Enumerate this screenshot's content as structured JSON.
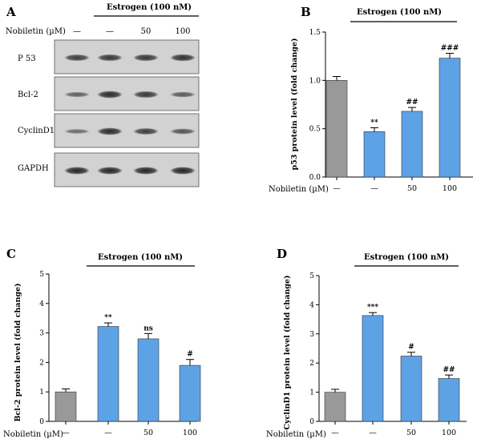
{
  "colors": {
    "control_bar": "#999999",
    "treated_bar": "#5ea2e6",
    "axis": "#000000",
    "blot_bg": "#d2d2d2",
    "band": "#1e1e1e"
  },
  "panel_a": {
    "letter": "A",
    "header": "Estrogen (100 nM)",
    "dose_label": "Nobiletin (µM)",
    "lane_labels": [
      "—",
      "—",
      "50",
      "100"
    ],
    "rows": [
      {
        "label": "P 53",
        "band_intensity": [
          0.75,
          0.8,
          0.8,
          0.85
        ]
      },
      {
        "label": "Bcl-2",
        "band_intensity": [
          0.45,
          0.9,
          0.8,
          0.5
        ]
      },
      {
        "label": "CyclinD1",
        "band_intensity": [
          0.35,
          0.9,
          0.75,
          0.55
        ]
      },
      {
        "label": "GAPDH",
        "band_intensity": [
          0.95,
          0.95,
          0.95,
          0.95
        ]
      }
    ]
  },
  "chart_data": [
    {
      "panel": "B",
      "type": "bar",
      "header": "Estrogen (100 nM)",
      "dose_label": "Nobiletin (µM)",
      "ylabel": "p53 protein level (fold change)",
      "xlabel": "",
      "categories": [
        "—",
        "—",
        "50",
        "100"
      ],
      "values": [
        1.0,
        0.47,
        0.68,
        1.23
      ],
      "errors": [
        0.04,
        0.04,
        0.04,
        0.05
      ],
      "significance": [
        "",
        "**",
        "##",
        "###"
      ],
      "ylim": [
        0,
        1.5
      ],
      "yticks": [
        "0.0",
        "0.5",
        "1.0",
        "1.5"
      ],
      "ytick_values": [
        0,
        0.5,
        1.0,
        1.5
      ]
    },
    {
      "panel": "C",
      "type": "bar",
      "header": "Estrogen (100 nM)",
      "dose_label": "Nobiletin (µM)",
      "ylabel": "Bcl-2 protein level (fold change)",
      "xlabel": "",
      "categories": [
        "—",
        "—",
        "50",
        "100"
      ],
      "values": [
        1.0,
        3.22,
        2.8,
        1.9
      ],
      "errors": [
        0.1,
        0.12,
        0.18,
        0.2
      ],
      "significance": [
        "",
        "**",
        "ns",
        "#"
      ],
      "ylim": [
        0,
        5
      ],
      "yticks": [
        "0",
        "1",
        "2",
        "3",
        "4",
        "5"
      ],
      "ytick_values": [
        0,
        1,
        2,
        3,
        4,
        5
      ]
    },
    {
      "panel": "D",
      "type": "bar",
      "header": "Estrogen (100 nM)",
      "dose_label": "Nobiletin (µM)",
      "ylabel": "CyclinD1 protein level (fold change)",
      "xlabel": "",
      "categories": [
        "—",
        "—",
        "50",
        "100"
      ],
      "values": [
        1.0,
        3.63,
        2.24,
        1.47
      ],
      "errors": [
        0.1,
        0.1,
        0.13,
        0.12
      ],
      "significance": [
        "",
        "***",
        "#",
        "##"
      ],
      "ylim": [
        0,
        5
      ],
      "yticks": [
        "0",
        "1",
        "2",
        "3",
        "4",
        "5"
      ],
      "ytick_values": [
        0,
        1,
        2,
        3,
        4,
        5
      ]
    }
  ]
}
